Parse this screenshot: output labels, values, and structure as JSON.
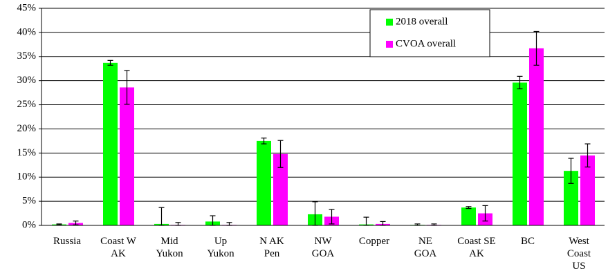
{
  "chart_data": {
    "type": "bar",
    "categories": [
      "Russia",
      "Coast W\nAK",
      "Mid\nYukon",
      "Up\nYukon",
      "N AK\nPen",
      "NW\nGOA",
      "Copper",
      "NE\nGOA",
      "Coast SE\nAK",
      "BC",
      "West\nCoast\nUS"
    ],
    "series": [
      {
        "name": "2018 overall",
        "color": "#00ff00",
        "values": [
          0.2,
          33.7,
          0.3,
          0.8,
          17.5,
          2.3,
          0.2,
          0.1,
          3.7,
          29.6,
          11.3
        ],
        "errors": [
          0.1,
          0.5,
          3.4,
          1.2,
          0.6,
          2.6,
          1.5,
          0.2,
          0.2,
          1.3,
          2.6
        ]
      },
      {
        "name": "CVOA overall",
        "color": "#ff00ff",
        "values": [
          0.5,
          28.6,
          0.1,
          0.1,
          14.8,
          1.8,
          0.3,
          0.1,
          2.5,
          36.7,
          14.5
        ],
        "errors": [
          0.4,
          3.5,
          0.5,
          0.5,
          2.8,
          1.5,
          0.5,
          0.2,
          1.6,
          3.5,
          2.4
        ]
      }
    ],
    "ylim": [
      0,
      45
    ],
    "yticks": [
      {
        "value": 0,
        "label": "0%"
      },
      {
        "value": 5,
        "label": "5%"
      },
      {
        "value": 10,
        "label": "10%"
      },
      {
        "value": 15,
        "label": "15%"
      },
      {
        "value": 20,
        "label": "20%"
      },
      {
        "value": 25,
        "label": "25%"
      },
      {
        "value": 30,
        "label": "30%"
      },
      {
        "value": 35,
        "label": "35%"
      },
      {
        "value": 40,
        "label": "40%"
      },
      {
        "value": 45,
        "label": "45%"
      }
    ],
    "grid": true
  }
}
